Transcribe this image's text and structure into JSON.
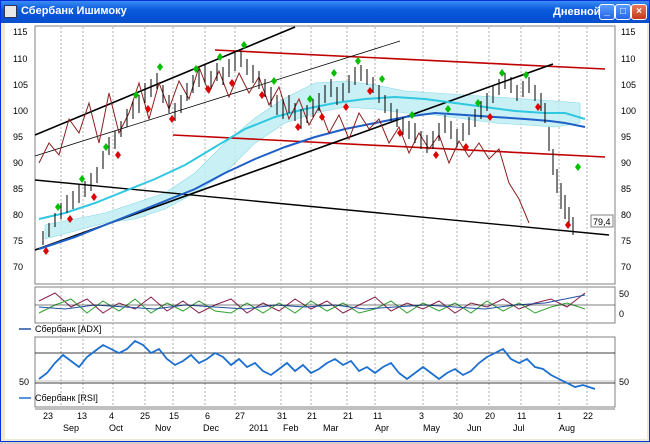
{
  "window": {
    "title": "Сбербанк Ишимоку",
    "period": "Дневной",
    "minimize_label": "_",
    "maximize_label": "□",
    "close_label": "×"
  },
  "price_panel": {
    "y_ticks": [
      "115",
      "110",
      "105",
      "100",
      "95",
      "90",
      "85",
      "80",
      "75",
      "70"
    ],
    "last_price": "79,4"
  },
  "adx_panel": {
    "label": "Сбербанк [ADX]",
    "y_ticks": [
      "50",
      "0"
    ]
  },
  "rsi_panel": {
    "label": "Сбербанк [RSI]",
    "y_ticks": [
      "50"
    ]
  },
  "x_axis": {
    "days": [
      "23",
      "13",
      "4",
      "25",
      "15",
      "6",
      "27",
      "31",
      "21",
      "21",
      "11",
      "3",
      "30",
      "20",
      "11",
      "1",
      "22"
    ],
    "months": [
      "Sep",
      "Oct",
      "Nov",
      "Dec",
      "2011",
      "Feb",
      "Mar",
      "Apr",
      "May",
      "Jun",
      "Jul",
      "Aug"
    ]
  },
  "colors": {
    "window_frame": "#0831d9",
    "up_signal": "#00c000",
    "down_signal": "#e00000",
    "channel_red": "#c00000",
    "trend_black": "#000000",
    "ma_blue": "#1f5fc8",
    "ma_cyan": "#30c8e0",
    "rsi_line": "#1c6fd0"
  }
}
